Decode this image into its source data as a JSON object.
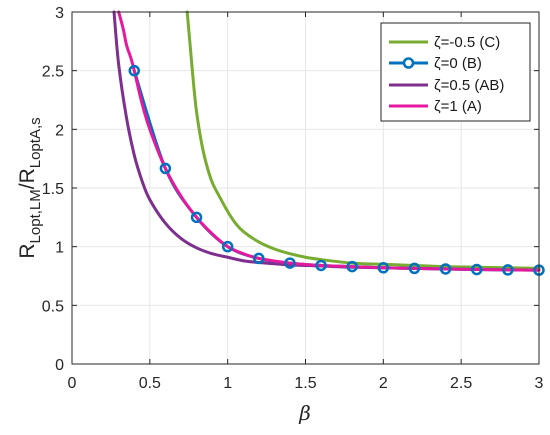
{
  "chart_data": {
    "type": "line",
    "title": "",
    "xlabel": "β",
    "ylabel": {
      "main": "R",
      "num_sub": "Lopt,LM",
      "slash": "/",
      "den_main": "R",
      "den_sub": "LoptA,s"
    },
    "xlim": [
      0,
      3
    ],
    "ylim": [
      0,
      3
    ],
    "xticks": [
      0,
      0.5,
      1,
      1.5,
      2,
      2.5,
      3
    ],
    "xtick_labels": [
      "0",
      "0.5",
      "1",
      "1.5",
      "2",
      "2.5",
      "3"
    ],
    "yticks": [
      0,
      0.5,
      1,
      1.5,
      2,
      2.5,
      3
    ],
    "ytick_labels": [
      "0",
      "0.5",
      "1",
      "1.5",
      "2",
      "2.5",
      "3"
    ],
    "grid": true,
    "legend_position": "top-right",
    "series": [
      {
        "name": "ζ=-0.5 (C)",
        "color": "#77AC30",
        "marker": "none",
        "x": [
          0.74,
          0.76,
          0.78,
          0.8,
          0.83,
          0.86,
          0.9,
          0.95,
          1.0,
          1.05,
          1.1,
          1.2,
          1.3,
          1.4,
          1.5,
          1.6,
          1.8,
          2.0,
          2.2,
          2.4,
          2.6,
          2.8,
          3.0
        ],
        "y": [
          3.0,
          2.7,
          2.4,
          2.15,
          1.9,
          1.72,
          1.55,
          1.42,
          1.3,
          1.2,
          1.13,
          1.04,
          0.98,
          0.94,
          0.91,
          0.89,
          0.86,
          0.85,
          0.84,
          0.83,
          0.825,
          0.82,
          0.815
        ]
      },
      {
        "name": "ζ=0 (B)",
        "color": "#0072BD",
        "marker": "circle",
        "x": [
          0.4,
          0.6,
          0.8,
          1.0,
          1.2,
          1.4,
          1.6,
          1.8,
          2.0,
          2.2,
          2.4,
          2.6,
          2.8,
          3.0
        ],
        "y": [
          2.5,
          1.667,
          1.25,
          1.0,
          0.9,
          0.86,
          0.84,
          0.83,
          0.82,
          0.815,
          0.81,
          0.805,
          0.802,
          0.8
        ]
      },
      {
        "name": "ζ=0.5 (AB)",
        "color": "#7E2F8E",
        "marker": "none",
        "x": [
          0.27,
          0.3,
          0.35,
          0.4,
          0.45,
          0.5,
          0.6,
          0.7,
          0.8,
          0.9,
          1.0,
          1.1,
          1.2,
          1.4,
          1.6,
          1.8,
          2.0,
          2.2,
          2.4,
          2.6,
          2.8,
          3.0
        ],
        "y": [
          3.0,
          2.55,
          2.1,
          1.78,
          1.56,
          1.4,
          1.2,
          1.07,
          0.99,
          0.94,
          0.91,
          0.88,
          0.865,
          0.845,
          0.835,
          0.825,
          0.82,
          0.815,
          0.81,
          0.805,
          0.802,
          0.8
        ]
      },
      {
        "name": "ζ=1 (A)",
        "color": "#E6189E",
        "marker": "none",
        "x": [
          0.3,
          0.33,
          0.35,
          0.38,
          0.4,
          0.45,
          0.5,
          0.6,
          0.7,
          0.8,
          0.9,
          1.0,
          1.1,
          1.2,
          1.4,
          1.6,
          1.8,
          2.0,
          2.2,
          2.4,
          2.6,
          2.8,
          3.0
        ],
        "y": [
          3.0,
          2.85,
          2.72,
          2.6,
          2.5,
          2.22,
          2.0,
          1.667,
          1.43,
          1.25,
          1.11,
          1.0,
          0.94,
          0.9,
          0.86,
          0.84,
          0.83,
          0.82,
          0.815,
          0.81,
          0.805,
          0.802,
          0.8
        ]
      }
    ]
  }
}
